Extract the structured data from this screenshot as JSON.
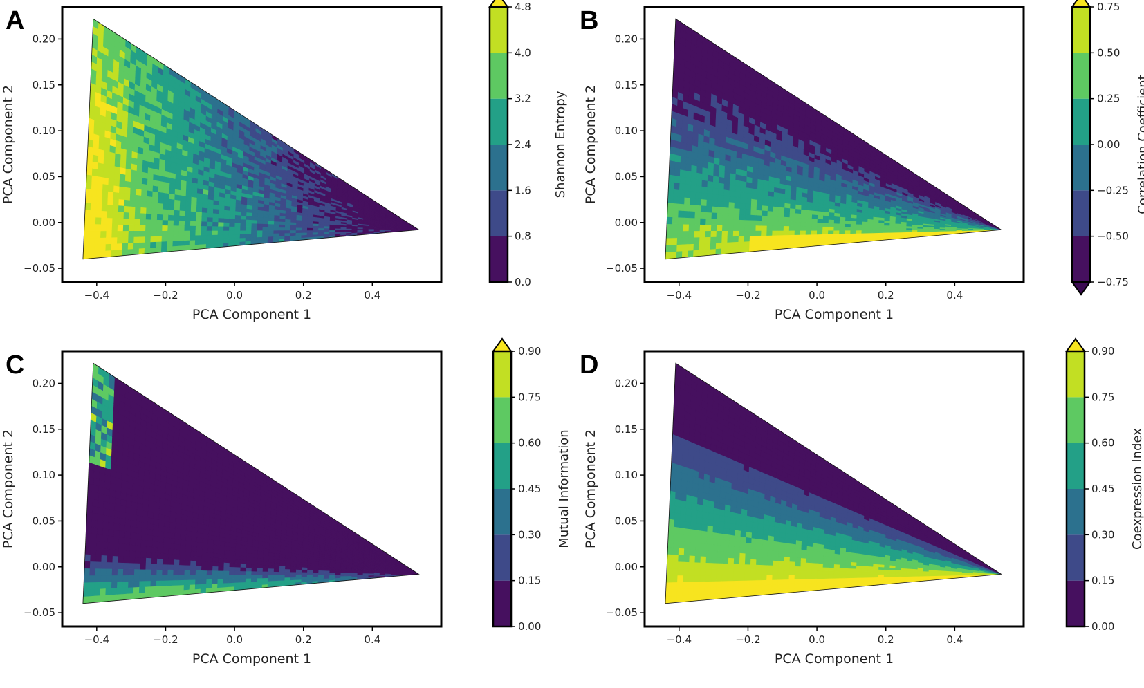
{
  "colors": {
    "levels": [
      "#46105f",
      "#3e4a89",
      "#2c718e",
      "#23a087",
      "#5ec962",
      "#c2df23",
      "#f7e41f"
    ],
    "frame": "#000000",
    "contour_line": "#111111"
  },
  "chart_data": [
    {
      "panel": "A",
      "type": "contour",
      "title": "",
      "xlabel": "PCA Component 1",
      "ylabel": "PCA Component 2",
      "xlim": [
        -0.5,
        0.6
      ],
      "ylim": [
        -0.065,
        0.235
      ],
      "xticks": [
        -0.4,
        -0.2,
        0.0,
        0.2,
        0.4
      ],
      "xtick_labels": [
        "−0.4",
        "−0.2",
        "0.0",
        "0.2",
        "0.4"
      ],
      "yticks": [
        -0.05,
        0.0,
        0.05,
        0.1,
        0.15,
        0.2
      ],
      "ytick_labels": [
        "−0.05",
        "0.00",
        "0.05",
        "0.10",
        "0.15",
        "0.20"
      ],
      "domain_vertices": [
        [
          -0.44,
          -0.04
        ],
        [
          -0.41,
          0.222
        ],
        [
          0.535,
          -0.008
        ]
      ],
      "colorbar": {
        "label": "Shannon Entropy",
        "levels": [
          0.0,
          0.8,
          1.6,
          2.4,
          3.2,
          4.0,
          4.8
        ],
        "tick_labels": [
          "0.0",
          "0.8",
          "1.6",
          "2.4",
          "3.2",
          "4.0",
          "4.8"
        ],
        "extend": "max"
      },
      "field": "entropy"
    },
    {
      "panel": "B",
      "type": "contour",
      "title": "",
      "xlabel": "PCA Component 1",
      "ylabel": "PCA Component 2",
      "xlim": [
        -0.5,
        0.6
      ],
      "ylim": [
        -0.065,
        0.235
      ],
      "xticks": [
        -0.4,
        -0.2,
        0.0,
        0.2,
        0.4
      ],
      "xtick_labels": [
        "−0.4",
        "−0.2",
        "0.0",
        "0.2",
        "0.4"
      ],
      "yticks": [
        -0.05,
        0.0,
        0.05,
        0.1,
        0.15,
        0.2
      ],
      "ytick_labels": [
        "−0.05",
        "0.00",
        "0.05",
        "0.10",
        "0.15",
        "0.20"
      ],
      "domain_vertices": [
        [
          -0.44,
          -0.04
        ],
        [
          -0.41,
          0.222
        ],
        [
          0.535,
          -0.008
        ]
      ],
      "colorbar": {
        "label": "Correlation Coefficient",
        "levels": [
          -0.75,
          -0.5,
          -0.25,
          0.0,
          0.25,
          0.5,
          0.75
        ],
        "tick_labels": [
          "−0.75",
          "−0.50",
          "−0.25",
          "0.00",
          "0.25",
          "0.50",
          "0.75"
        ],
        "extend": "both"
      },
      "field": "correlation"
    },
    {
      "panel": "C",
      "type": "contour",
      "title": "",
      "xlabel": "PCA Component 1",
      "ylabel": "PCA Component 2",
      "xlim": [
        -0.5,
        0.6
      ],
      "ylim": [
        -0.065,
        0.235
      ],
      "xticks": [
        -0.4,
        -0.2,
        0.0,
        0.2,
        0.4
      ],
      "xtick_labels": [
        "−0.4",
        "−0.2",
        "0.0",
        "0.2",
        "0.4"
      ],
      "yticks": [
        -0.05,
        0.0,
        0.05,
        0.1,
        0.15,
        0.2
      ],
      "ytick_labels": [
        "−0.05",
        "0.00",
        "0.05",
        "0.10",
        "0.15",
        "0.20"
      ],
      "domain_vertices": [
        [
          -0.44,
          -0.04
        ],
        [
          -0.41,
          0.222
        ],
        [
          0.535,
          -0.008
        ]
      ],
      "colorbar": {
        "label": "Mutual Information",
        "levels": [
          0.0,
          0.15,
          0.3,
          0.45,
          0.6,
          0.75,
          0.9
        ],
        "tick_labels": [
          "0.00",
          "0.15",
          "0.30",
          "0.45",
          "0.60",
          "0.75",
          "0.90"
        ],
        "extend": "max"
      },
      "field": "mutual"
    },
    {
      "panel": "D",
      "type": "contour",
      "title": "",
      "xlabel": "PCA Component 1",
      "ylabel": "PCA Component 2",
      "xlim": [
        -0.5,
        0.6
      ],
      "ylim": [
        -0.065,
        0.235
      ],
      "xticks": [
        -0.4,
        -0.2,
        0.0,
        0.2,
        0.4
      ],
      "xtick_labels": [
        "−0.4",
        "−0.2",
        "0.0",
        "0.2",
        "0.4"
      ],
      "yticks": [
        -0.05,
        0.0,
        0.05,
        0.1,
        0.15,
        0.2
      ],
      "ytick_labels": [
        "−0.05",
        "0.00",
        "0.05",
        "0.10",
        "0.15",
        "0.20"
      ],
      "domain_vertices": [
        [
          -0.44,
          -0.04
        ],
        [
          -0.41,
          0.222
        ],
        [
          0.535,
          -0.008
        ]
      ],
      "colorbar": {
        "label": "Coexpression Index",
        "levels": [
          0.0,
          0.15,
          0.3,
          0.45,
          0.6,
          0.75,
          0.9
        ],
        "tick_labels": [
          "0.00",
          "0.15",
          "0.30",
          "0.45",
          "0.60",
          "0.75",
          "0.90"
        ],
        "extend": "max"
      },
      "field": "coexpression"
    }
  ]
}
